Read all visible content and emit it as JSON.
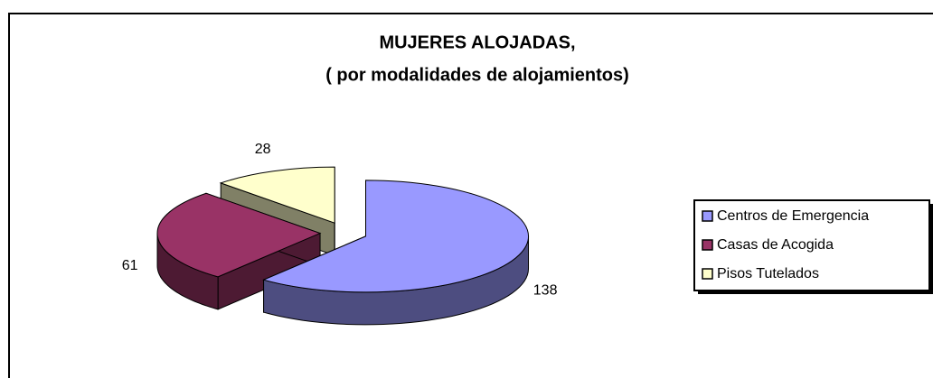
{
  "chart_data": {
    "type": "pie3d",
    "title": "MUJERES ALOJADAS,",
    "subtitle": "( por modalidades de alojamientos)",
    "categories": [
      "Centros de Emergencia",
      "Casas de Acogida",
      "Pisos Tutelados"
    ],
    "values": [
      138,
      61,
      28
    ],
    "colors": [
      "#9999ff",
      "#993366",
      "#ffffcc"
    ],
    "legend": "right"
  }
}
